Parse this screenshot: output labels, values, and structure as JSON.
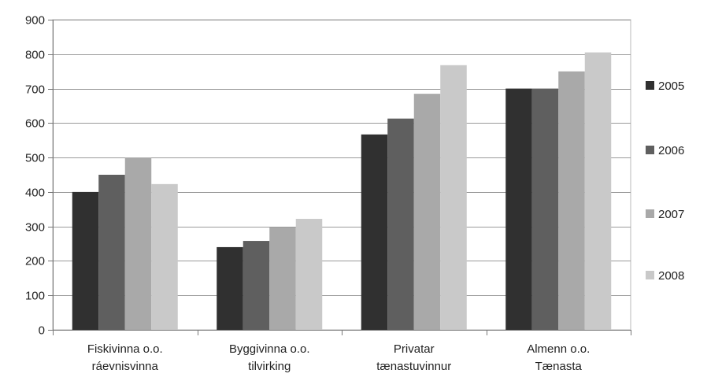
{
  "chart_data": {
    "type": "bar",
    "title": "",
    "xlabel": "",
    "ylabel": "",
    "categories": [
      [
        "Fiskivinna o.o.",
        "ráevnisvinna"
      ],
      [
        "Byggivinna o.o.",
        "tilvirking"
      ],
      [
        "Privatar",
        "tænastuvinnur"
      ],
      [
        "Almenn o.o.",
        "Tænasta"
      ]
    ],
    "series": [
      {
        "name": "2005",
        "color": "#303030",
        "values": [
          400,
          240,
          567,
          700
        ]
      },
      {
        "name": "2006",
        "color": "#5f5f5f",
        "values": [
          450,
          258,
          613,
          700
        ]
      },
      {
        "name": "2007",
        "color": "#a9a9a9",
        "values": [
          500,
          297,
          685,
          750
        ]
      },
      {
        "name": "2008",
        "color": "#c9c9c9",
        "values": [
          423,
          322,
          768,
          805
        ]
      }
    ],
    "ylim": [
      0,
      900
    ],
    "yticks": [
      0,
      100,
      200,
      300,
      400,
      500,
      600,
      700,
      800,
      900
    ],
    "grid": true,
    "legend_position": "right"
  }
}
